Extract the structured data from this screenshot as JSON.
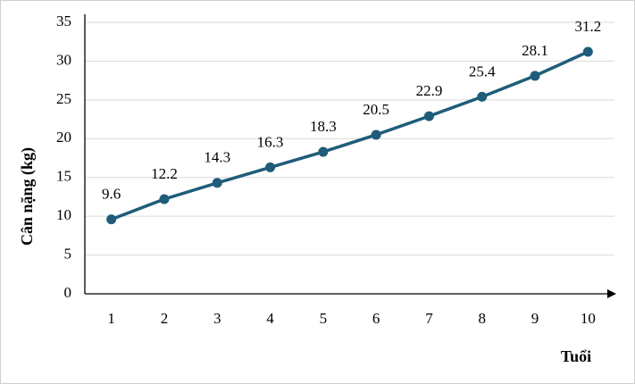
{
  "chart_data": {
    "type": "line",
    "x_label": "Tuổi",
    "y_label": "Cân nặng (kg)",
    "categories": [
      "1",
      "2",
      "3",
      "4",
      "5",
      "6",
      "7",
      "8",
      "9",
      "10"
    ],
    "values": [
      9.6,
      12.2,
      14.3,
      16.3,
      18.3,
      20.5,
      22.9,
      25.4,
      28.1,
      31.2
    ],
    "color": "#1f5c7a",
    "ylim": [
      0,
      35
    ],
    "yticks": [
      0,
      5,
      10,
      15,
      20,
      25,
      30,
      35
    ],
    "grid": true
  }
}
